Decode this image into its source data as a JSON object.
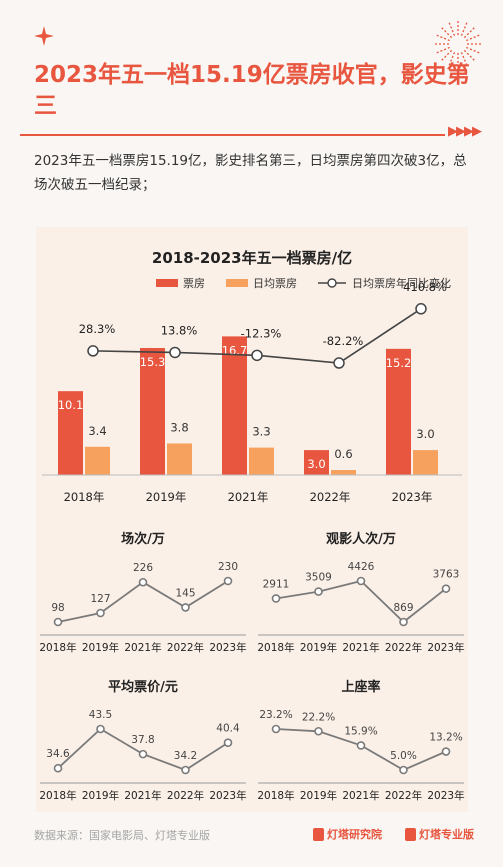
{
  "header": {
    "title": "2023年五一档15.19亿票房收官，影史第三",
    "summary": "2023年五一档票房15.19亿，影史排名第三，日均票房第四次破3亿，总场次破五一档纪录；"
  },
  "footer": {
    "source": "数据来源：国家电影局、灯塔专业版",
    "brand1": "灯塔研究院",
    "brand2": "灯塔专业版"
  },
  "colors": {
    "accent": "#e8563f",
    "bar_secondary": "#f6a15e",
    "line": "#7a7a7a"
  },
  "chart_data": [
    {
      "type": "bar",
      "title": "2018-2023年五一档票房/亿",
      "categories": [
        "2018年",
        "2019年",
        "2021年",
        "2022年",
        "2023年"
      ],
      "series": [
        {
          "name": "票房",
          "values": [
            10.1,
            15.3,
            16.7,
            3.0,
            15.2
          ]
        },
        {
          "name": "日均票房",
          "values": [
            3.4,
            3.8,
            3.3,
            0.6,
            3.0
          ]
        },
        {
          "name": "日均票房年同比变化",
          "type": "line",
          "values": [
            28.3,
            13.8,
            -12.3,
            -82.2,
            410.8
          ],
          "labels": [
            "28.3%",
            "13.8%",
            "-12.3%",
            "-82.2%",
            "410.8%"
          ]
        }
      ],
      "legend": "top"
    },
    {
      "type": "line",
      "title": "场次/万",
      "categories": [
        "2018年",
        "2019年",
        "2021年",
        "2022年",
        "2023年"
      ],
      "values": [
        98,
        127,
        226,
        145,
        230
      ],
      "labels": [
        "98",
        "127",
        "226",
        "145",
        "230"
      ]
    },
    {
      "type": "line",
      "title": "观影人次/万",
      "categories": [
        "2018年",
        "2019年",
        "2021年",
        "2022年",
        "2023年"
      ],
      "values": [
        2911,
        3509,
        4426,
        869,
        3763
      ],
      "labels": [
        "2911",
        "3509",
        "4426",
        "869",
        "3763"
      ]
    },
    {
      "type": "line",
      "title": "平均票价/元",
      "categories": [
        "2018年",
        "2019年",
        "2021年",
        "2022年",
        "2023年"
      ],
      "values": [
        34.6,
        43.5,
        37.8,
        34.2,
        40.4
      ],
      "labels": [
        "34.6",
        "43.5",
        "37.8",
        "34.2",
        "40.4"
      ]
    },
    {
      "type": "line",
      "title": "上座率",
      "categories": [
        "2018年",
        "2019年",
        "2021年",
        "2022年",
        "2023年"
      ],
      "values": [
        23.2,
        22.2,
        15.9,
        5.0,
        13.2
      ],
      "labels": [
        "23.2%",
        "22.2%",
        "15.9%",
        "5.0%",
        "13.2%"
      ]
    }
  ]
}
